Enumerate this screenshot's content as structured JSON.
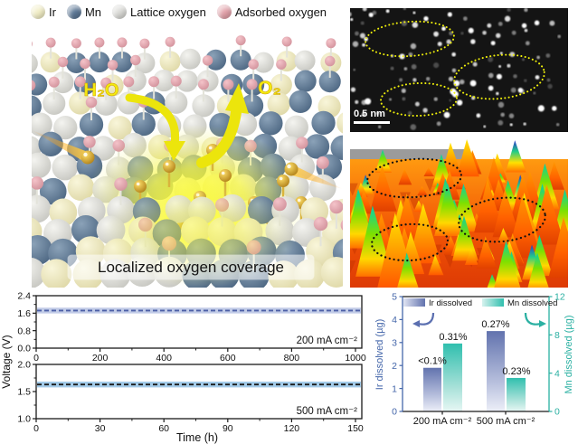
{
  "legend": {
    "items": [
      {
        "label": "Ir",
        "color": "#f1edc5"
      },
      {
        "label": "Mn",
        "color": "#5c7795"
      },
      {
        "label": "Lattice oxygen",
        "color": "#d9d9d5"
      },
      {
        "label": "Adsorbed oxygen",
        "color": "#e2a1a9"
      }
    ]
  },
  "illustration": {
    "h2o_label": "H₂O",
    "o2_label": "O₂",
    "caption": "Localized oxygen coverage",
    "colors": {
      "mn": "#52708e",
      "ir": "#efecc8",
      "lattice": "#d6d6d0",
      "adsorbed": "#e5a6ae",
      "glow": "#f8f716",
      "gold": "#e9b62b",
      "arrow": "#ece50c"
    }
  },
  "stem_panel": {
    "scale_bar_label": "0.5 nm",
    "ellipse_color": "#f0f00a"
  },
  "surface_panel": {
    "ellipse_color": "#111111"
  },
  "stability": {
    "ylabel": "Voltage (V)",
    "xlabel": "Time (h)",
    "plots": [
      {
        "label": "200 mA cm⁻²",
        "yticks": [
          0.0,
          0.8,
          1.6,
          2.4
        ],
        "ymin": 0,
        "ymax": 2.4,
        "xticks": [
          0,
          200,
          400,
          600,
          800,
          1000
        ],
        "voltage": 1.72,
        "band_color": "#c1cbe7",
        "line_color": "#4c5fa6"
      },
      {
        "label": "500 mA cm⁻²",
        "yticks": [
          1.0,
          1.5,
          2.0
        ],
        "ymin": 1.0,
        "ymax": 2.0,
        "xticks": [
          0,
          30,
          60,
          90,
          120,
          150
        ],
        "voltage": 1.63,
        "band_color": "#a3cbe9",
        "line_color": "#1a1a1a"
      }
    ]
  },
  "chart_data": [
    {
      "type": "line",
      "title": "",
      "xlabel": "Time (h)",
      "ylabel": "Voltage (V)",
      "xlim": [
        0,
        1020
      ],
      "ylim": [
        0,
        2.4
      ],
      "x": [
        0,
        1000
      ],
      "y": [
        1.72,
        1.72
      ],
      "annotation": "200 mA cm⁻²"
    },
    {
      "type": "line",
      "title": "",
      "xlabel": "Time (h)",
      "ylabel": "Voltage (V)",
      "xlim": [
        0,
        154
      ],
      "ylim": [
        1.0,
        2.0
      ],
      "x": [
        0,
        153
      ],
      "y": [
        1.63,
        1.63
      ],
      "annotation": "500 mA cm⁻²"
    },
    {
      "type": "bar",
      "categories": [
        "200 mA cm⁻²",
        "500 mA cm⁻²"
      ],
      "series": [
        {
          "name": "Ir dissolved",
          "axis": "left",
          "values": [
            1.9,
            3.5
          ],
          "labels": [
            "<0.1%",
            "0.27%"
          ],
          "color_top": "#6273ae",
          "color_bottom": "#edeff8"
        },
        {
          "name": "Mn dissolved",
          "axis": "right",
          "values": [
            7.1,
            3.5
          ],
          "labels": [
            "0.31%",
            "0.23%"
          ],
          "color_top": "#30bfae",
          "color_bottom": "#e7f7f4"
        }
      ],
      "ylabel_left": "Ir dissolved (µg)",
      "ylim_left": [
        0,
        5
      ],
      "yticks_left": [
        0,
        1,
        2,
        3,
        4,
        5
      ],
      "ylabel_right": "Mn dissolved (µg)",
      "ylim_right": [
        0,
        12
      ],
      "yticks_right": [
        0,
        4,
        8,
        12
      ],
      "axis_color_left": "#4466aa",
      "axis_color_right": "#2ab0a2",
      "legend_position": "top",
      "grid": false
    }
  ]
}
